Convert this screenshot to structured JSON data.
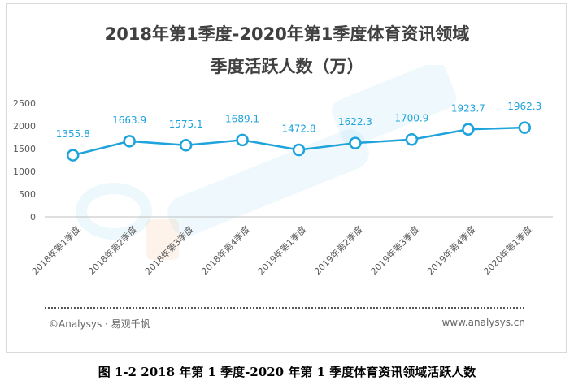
{
  "chart_data": {
    "type": "line",
    "title": "2018年第1季度-2020年第1季度体育资讯领域",
    "subtitle": "季度活跃人数（万）",
    "categories": [
      "2018年第1季度",
      "2018年第2季度",
      "2018年第3季度",
      "2018年第4季度",
      "2019年第1季度",
      "2019年第2季度",
      "2019年第3季度",
      "2019年第4季度",
      "2020年第1季度"
    ],
    "values": [
      1355.8,
      1663.9,
      1575.1,
      1689.1,
      1472.8,
      1622.3,
      1700.9,
      1923.7,
      1962.3
    ],
    "value_labels": [
      "1355.8",
      "1663.9",
      "1575.1",
      "1689.1",
      "1472.8",
      "1622.3",
      "1700.9",
      "1923.7",
      "1962.3"
    ],
    "y_ticks": [
      "2500",
      "2000",
      "1500",
      "1000",
      "500",
      "0"
    ],
    "ylim": [
      0,
      2500
    ],
    "grid": false,
    "line_color": "#1ea3dc"
  },
  "footer": {
    "source": "©Analysys · 易观千帆",
    "website": "www.analysys.cn"
  },
  "caption": "图 1-2  2018 年第 1 季度-2020 年第 1 季度体育资讯领域活跃人数"
}
